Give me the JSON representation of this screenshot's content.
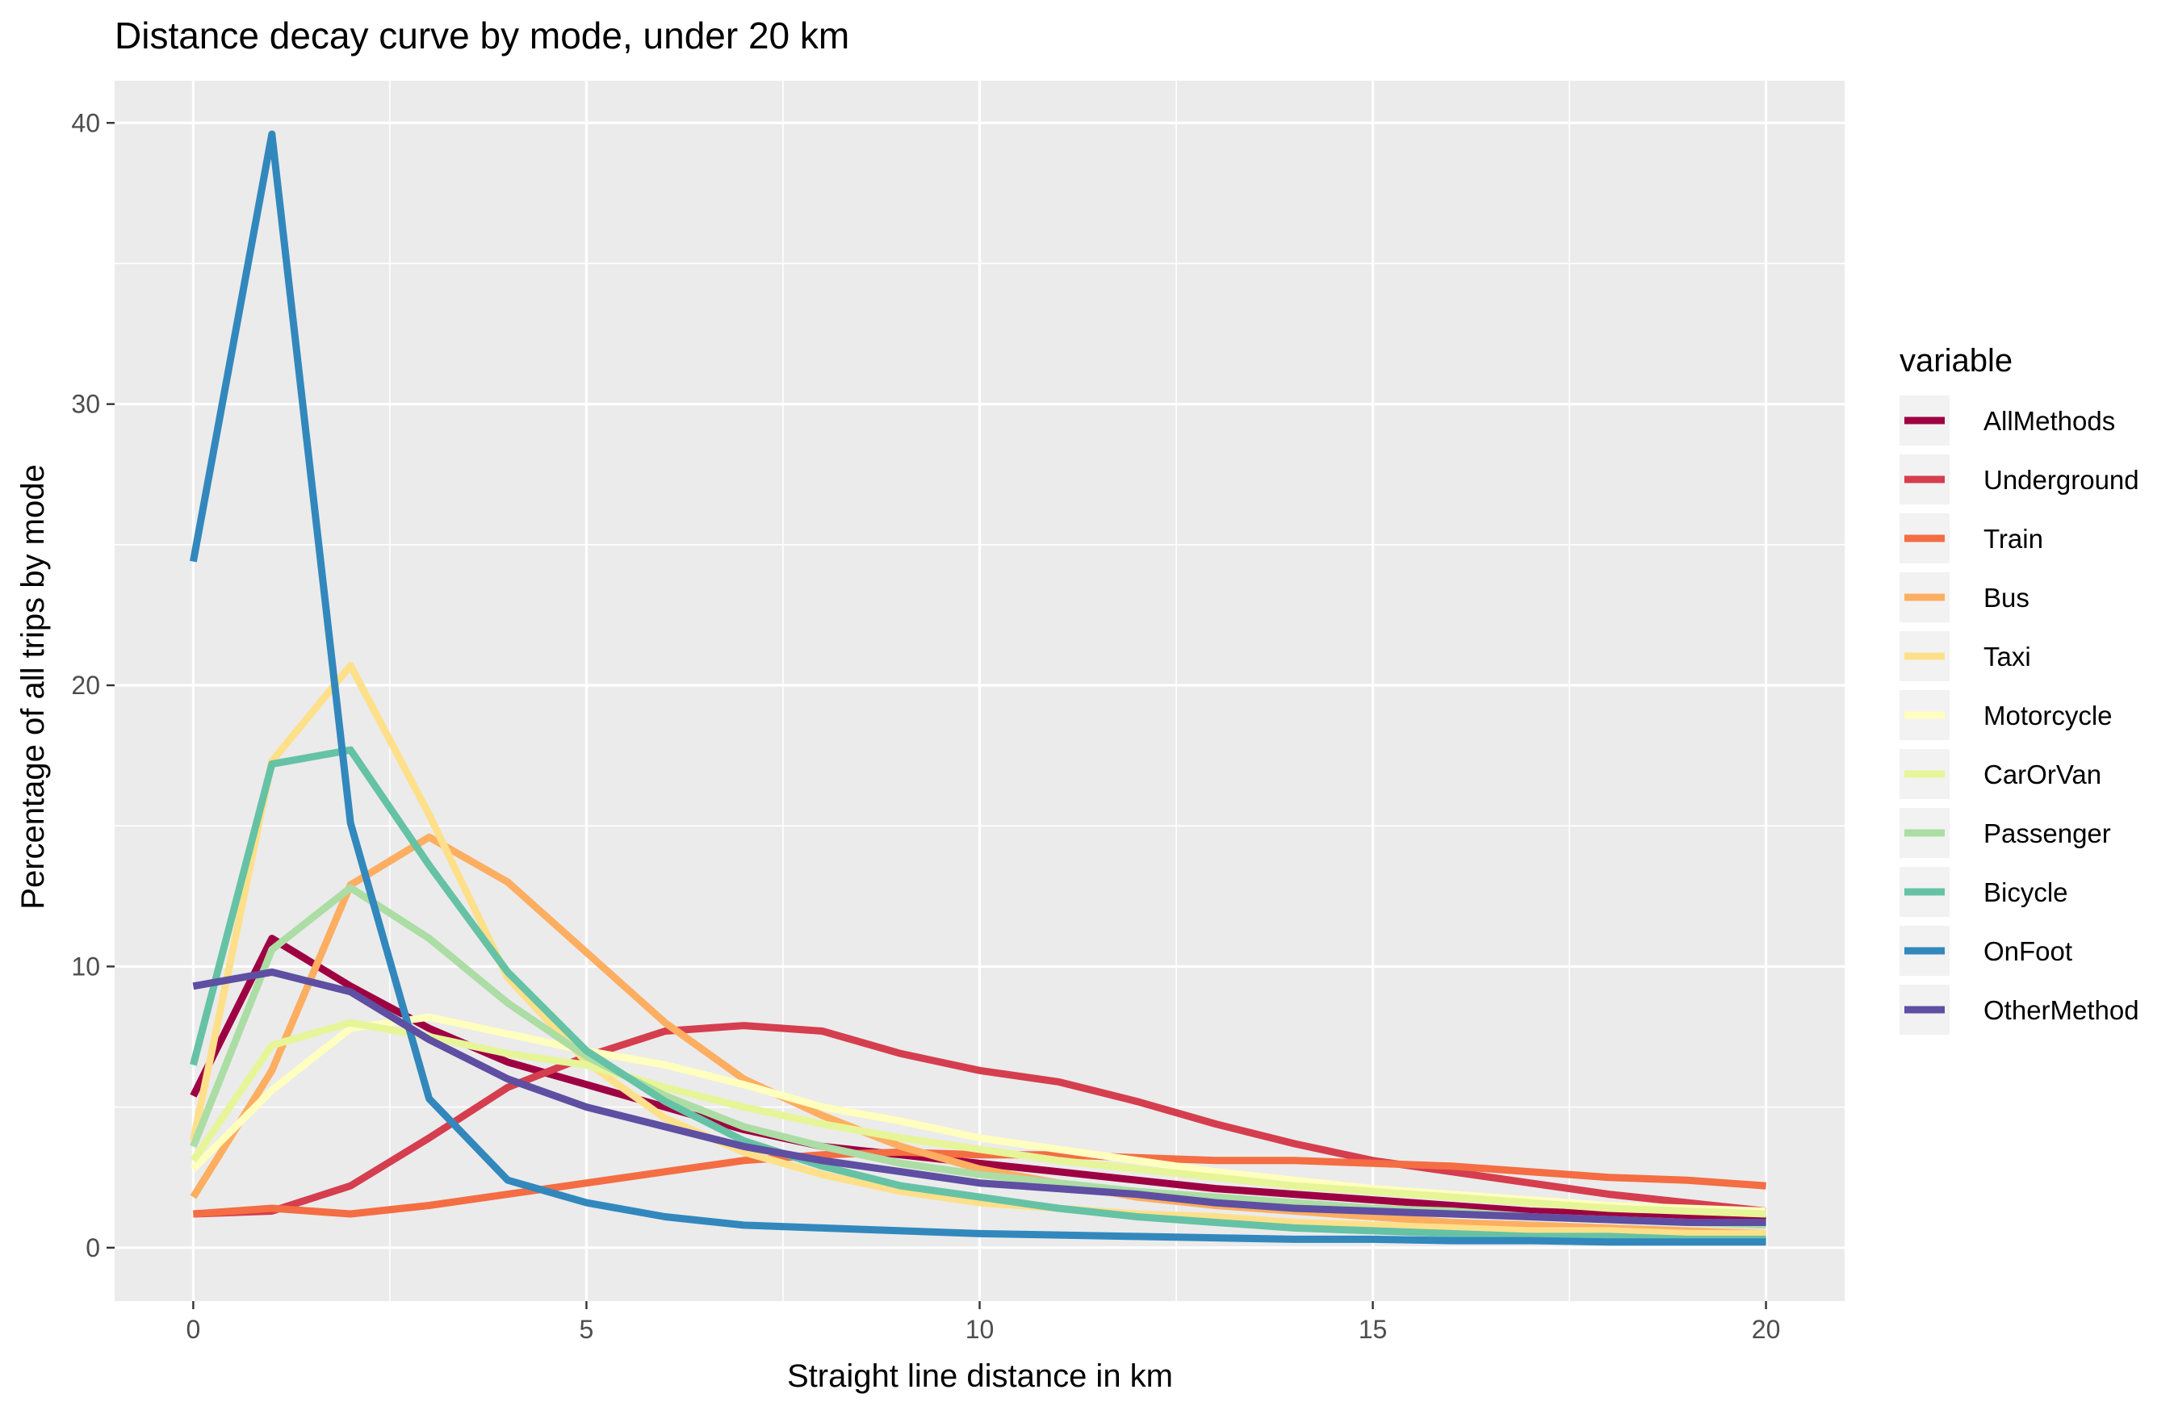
{
  "chart_data": {
    "type": "line",
    "title": "Distance decay curve by mode, under 20 km",
    "xlabel": "Straight line distance in km",
    "ylabel": "Percentage of all trips by mode",
    "xlim": [
      -1,
      21
    ],
    "ylim": [
      -1.9,
      41.5
    ],
    "x_ticks": [
      0,
      5,
      10,
      15,
      20
    ],
    "y_ticks": [
      0,
      10,
      20,
      30,
      40
    ],
    "grid": true,
    "panel_background": "#ebebeb",
    "grid_color": "#ffffff",
    "legend": {
      "title": "variable",
      "position": "right"
    },
    "x": [
      0,
      1,
      2,
      3,
      4,
      5,
      6,
      7,
      8,
      9,
      10,
      11,
      12,
      13,
      14,
      15,
      16,
      17,
      18,
      19,
      20
    ],
    "series": [
      {
        "name": "AllMethods",
        "color": "#9e0142",
        "values": [
          5.4,
          11.0,
          9.3,
          7.8,
          6.6,
          5.8,
          5.0,
          4.2,
          3.6,
          3.3,
          3.0,
          2.7,
          2.4,
          2.1,
          1.9,
          1.7,
          1.5,
          1.3,
          1.2,
          1.1,
          1.0
        ]
      },
      {
        "name": "Underground",
        "color": "#d53e4f",
        "values": [
          1.2,
          1.3,
          2.2,
          3.9,
          5.7,
          6.8,
          7.7,
          7.9,
          7.7,
          6.9,
          6.3,
          5.9,
          5.2,
          4.4,
          3.7,
          3.1,
          2.7,
          2.3,
          1.9,
          1.6,
          1.3
        ]
      },
      {
        "name": "Train",
        "color": "#f46d43",
        "values": [
          1.2,
          1.4,
          1.2,
          1.5,
          1.9,
          2.3,
          2.7,
          3.1,
          3.3,
          3.4,
          3.3,
          3.3,
          3.2,
          3.1,
          3.1,
          3.0,
          2.9,
          2.7,
          2.5,
          2.4,
          2.2
        ]
      },
      {
        "name": "Bus",
        "color": "#fdae61",
        "values": [
          1.8,
          6.3,
          12.9,
          14.6,
          13.0,
          10.5,
          8.0,
          6.0,
          4.7,
          3.6,
          2.8,
          2.3,
          1.8,
          1.5,
          1.3,
          1.1,
          0.9,
          0.8,
          0.7,
          0.6,
          0.5
        ]
      },
      {
        "name": "Taxi",
        "color": "#fee08b",
        "values": [
          3.8,
          17.3,
          20.7,
          15.4,
          9.6,
          6.6,
          4.6,
          3.4,
          2.6,
          2.0,
          1.6,
          1.4,
          1.2,
          1.1,
          0.9,
          0.8,
          0.7,
          0.6,
          0.6,
          0.5,
          0.5
        ]
      },
      {
        "name": "Motorcycle",
        "color": "#ffffbf",
        "values": [
          2.8,
          5.6,
          7.8,
          8.2,
          7.6,
          7.0,
          6.5,
          5.8,
          5.0,
          4.5,
          3.9,
          3.5,
          3.1,
          2.7,
          2.4,
          2.1,
          1.9,
          1.7,
          1.5,
          1.4,
          1.3
        ]
      },
      {
        "name": "CarOrVan",
        "color": "#e6f598",
        "values": [
          3.1,
          7.2,
          8.0,
          7.5,
          6.9,
          6.5,
          5.7,
          5.0,
          4.4,
          3.9,
          3.5,
          3.1,
          2.8,
          2.5,
          2.2,
          2.0,
          1.8,
          1.6,
          1.4,
          1.3,
          1.2
        ]
      },
      {
        "name": "Passenger",
        "color": "#abdda4",
        "values": [
          3.6,
          10.6,
          12.8,
          11.0,
          8.7,
          6.8,
          5.4,
          4.3,
          3.6,
          3.0,
          2.6,
          2.3,
          2.0,
          1.8,
          1.6,
          1.4,
          1.3,
          1.1,
          1.0,
          0.9,
          0.8
        ]
      },
      {
        "name": "Bicycle",
        "color": "#66c2a5",
        "values": [
          6.5,
          17.2,
          17.7,
          13.6,
          9.8,
          7.0,
          5.2,
          3.8,
          2.9,
          2.2,
          1.8,
          1.4,
          1.1,
          0.9,
          0.7,
          0.6,
          0.5,
          0.4,
          0.4,
          0.3,
          0.3
        ]
      },
      {
        "name": "OnFoot",
        "color": "#3288bd",
        "values": [
          24.4,
          39.6,
          15.1,
          5.3,
          2.4,
          1.6,
          1.1,
          0.8,
          0.7,
          0.6,
          0.5,
          0.45,
          0.4,
          0.35,
          0.3,
          0.3,
          0.25,
          0.25,
          0.2,
          0.2,
          0.2
        ]
      },
      {
        "name": "OtherMethod",
        "color": "#5e4fa2",
        "values": [
          9.3,
          9.8,
          9.1,
          7.4,
          6.0,
          5.0,
          4.3,
          3.6,
          3.1,
          2.7,
          2.3,
          2.1,
          1.9,
          1.6,
          1.4,
          1.3,
          1.2,
          1.1,
          1.0,
          0.9,
          0.9
        ]
      }
    ]
  }
}
